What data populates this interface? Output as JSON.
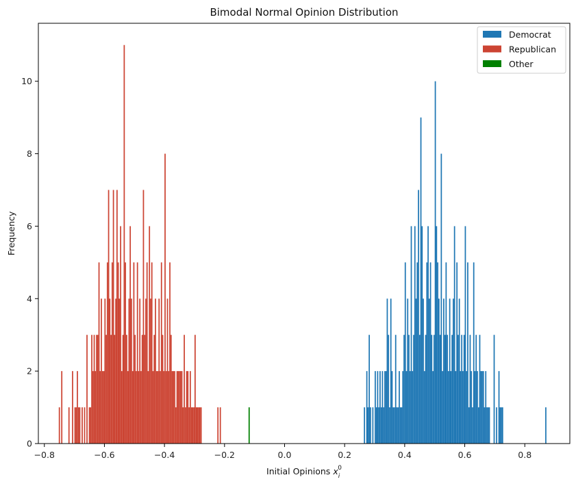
{
  "chart_data": {
    "type": "bar",
    "title": "Bimodal Normal Opinion Distribution",
    "xlabel": "Initial Opinions",
    "xlabel_math_base": "x",
    "xlabel_math_sub": "i",
    "xlabel_math_sup": "0",
    "ylabel": "Frequency",
    "xlim": [
      -0.82,
      0.95
    ],
    "ylim": [
      0,
      11.6
    ],
    "xticks": [
      -0.8,
      -0.6,
      -0.4,
      -0.2,
      0.0,
      0.2,
      0.4,
      0.6,
      0.8
    ],
    "xtick_labels": [
      "−0.8",
      "−0.6",
      "−0.4",
      "−0.2",
      "0.0",
      "0.2",
      "0.4",
      "0.6",
      "0.8"
    ],
    "yticks": [
      0,
      2,
      4,
      6,
      8,
      10
    ],
    "ytick_labels": [
      "0",
      "2",
      "4",
      "6",
      "8",
      "10"
    ],
    "legend_position": "top-right",
    "bin_width": 0.004,
    "series": [
      {
        "name": "Democrat",
        "color": "#1f77b4",
        "x": [
          0.266,
          0.274,
          0.278,
          0.282,
          0.286,
          0.294,
          0.302,
          0.306,
          0.31,
          0.314,
          0.318,
          0.322,
          0.326,
          0.33,
          0.334,
          0.338,
          0.342,
          0.346,
          0.35,
          0.354,
          0.358,
          0.362,
          0.366,
          0.37,
          0.374,
          0.378,
          0.382,
          0.386,
          0.39,
          0.394,
          0.398,
          0.402,
          0.406,
          0.41,
          0.414,
          0.418,
          0.422,
          0.426,
          0.43,
          0.434,
          0.438,
          0.442,
          0.446,
          0.45,
          0.454,
          0.458,
          0.462,
          0.466,
          0.47,
          0.474,
          0.478,
          0.482,
          0.486,
          0.49,
          0.494,
          0.498,
          0.502,
          0.506,
          0.51,
          0.514,
          0.518,
          0.522,
          0.526,
          0.53,
          0.534,
          0.538,
          0.542,
          0.546,
          0.55,
          0.554,
          0.558,
          0.562,
          0.566,
          0.57,
          0.574,
          0.578,
          0.582,
          0.586,
          0.59,
          0.594,
          0.598,
          0.602,
          0.606,
          0.61,
          0.614,
          0.618,
          0.622,
          0.626,
          0.63,
          0.634,
          0.638,
          0.642,
          0.646,
          0.65,
          0.654,
          0.658,
          0.662,
          0.666,
          0.67,
          0.674,
          0.678,
          0.682,
          0.698,
          0.706,
          0.714,
          0.718,
          0.722,
          0.726,
          0.87
        ],
        "values": [
          1,
          2,
          1,
          3,
          1,
          1,
          2,
          1,
          2,
          1,
          2,
          1,
          2,
          1,
          2,
          2,
          4,
          3,
          1,
          4,
          2,
          1,
          1,
          3,
          1,
          1,
          2,
          1,
          1,
          2,
          3,
          5,
          2,
          4,
          3,
          2,
          6,
          2,
          3,
          6,
          4,
          5,
          7,
          3,
          9,
          6,
          4,
          2,
          3,
          5,
          6,
          4,
          5,
          3,
          2,
          3,
          10,
          6,
          5,
          4,
          3,
          8,
          2,
          4,
          3,
          5,
          3,
          2,
          4,
          2,
          3,
          4,
          6,
          2,
          5,
          3,
          4,
          2,
          3,
          2,
          3,
          6,
          2,
          5,
          1,
          3,
          2,
          1,
          5,
          2,
          3,
          2,
          1,
          3,
          2,
          2,
          2,
          1,
          2,
          1,
          1,
          1,
          3,
          1,
          2,
          1,
          1,
          1,
          1
        ]
      },
      {
        "name": "Republican",
        "color": "#cc4433",
        "x": [
          -0.75,
          -0.742,
          -0.718,
          -0.706,
          -0.698,
          -0.694,
          -0.69,
          -0.686,
          -0.682,
          -0.674,
          -0.666,
          -0.658,
          -0.65,
          -0.646,
          -0.642,
          -0.638,
          -0.634,
          -0.63,
          -0.626,
          -0.622,
          -0.618,
          -0.614,
          -0.61,
          -0.606,
          -0.602,
          -0.598,
          -0.594,
          -0.59,
          -0.586,
          -0.582,
          -0.578,
          -0.574,
          -0.57,
          -0.566,
          -0.562,
          -0.558,
          -0.554,
          -0.55,
          -0.546,
          -0.542,
          -0.538,
          -0.534,
          -0.53,
          -0.526,
          -0.522,
          -0.518,
          -0.514,
          -0.51,
          -0.506,
          -0.502,
          -0.498,
          -0.494,
          -0.49,
          -0.486,
          -0.482,
          -0.478,
          -0.474,
          -0.47,
          -0.466,
          -0.462,
          -0.458,
          -0.454,
          -0.45,
          -0.446,
          -0.442,
          -0.438,
          -0.434,
          -0.43,
          -0.426,
          -0.422,
          -0.418,
          -0.414,
          -0.41,
          -0.406,
          -0.402,
          -0.398,
          -0.394,
          -0.39,
          -0.386,
          -0.382,
          -0.378,
          -0.374,
          -0.37,
          -0.366,
          -0.362,
          -0.358,
          -0.354,
          -0.35,
          -0.346,
          -0.342,
          -0.338,
          -0.334,
          -0.33,
          -0.326,
          -0.322,
          -0.318,
          -0.314,
          -0.31,
          -0.306,
          -0.302,
          -0.298,
          -0.294,
          -0.29,
          -0.286,
          -0.282,
          -0.278,
          -0.222,
          -0.214
        ],
        "values": [
          1,
          2,
          1,
          2,
          1,
          1,
          2,
          1,
          1,
          1,
          1,
          3,
          1,
          1,
          3,
          2,
          3,
          2,
          3,
          3,
          5,
          2,
          4,
          2,
          2,
          4,
          3,
          5,
          7,
          4,
          3,
          5,
          7,
          3,
          4,
          7,
          5,
          4,
          6,
          2,
          3,
          11,
          5,
          3,
          2,
          4,
          6,
          4,
          2,
          5,
          3,
          2,
          5,
          2,
          4,
          2,
          3,
          7,
          3,
          4,
          5,
          2,
          6,
          4,
          5,
          2,
          3,
          4,
          2,
          2,
          4,
          2,
          5,
          3,
          2,
          8,
          2,
          4,
          2,
          5,
          3,
          2,
          2,
          2,
          1,
          2,
          2,
          2,
          2,
          2,
          1,
          3,
          1,
          2,
          2,
          1,
          2,
          1,
          1,
          1,
          3,
          1,
          1,
          1,
          1,
          1,
          1,
          1
        ]
      },
      {
        "name": "Other",
        "color": "#008000",
        "x": [
          -0.118
        ],
        "values": [
          1
        ]
      }
    ]
  }
}
